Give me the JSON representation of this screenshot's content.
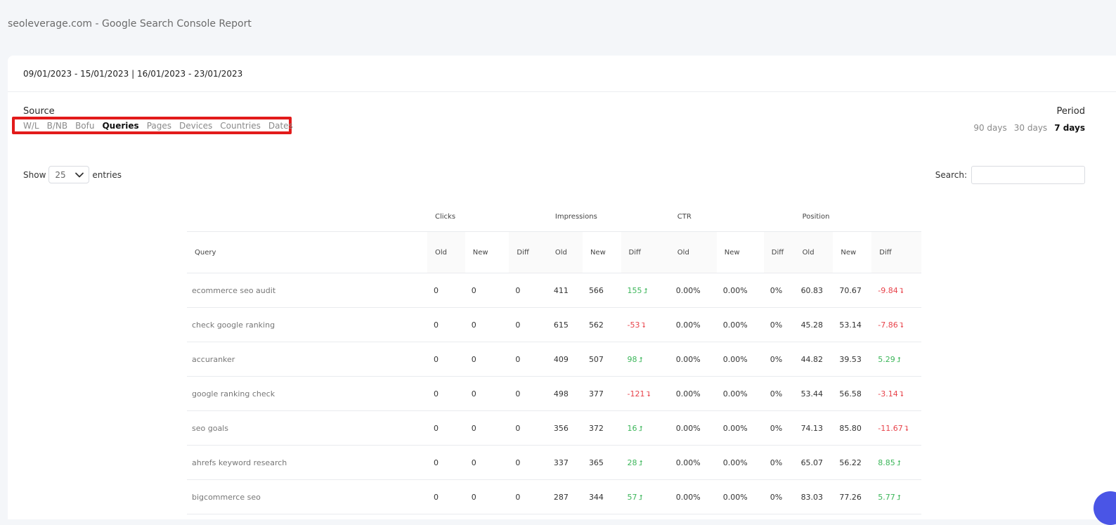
{
  "page": {
    "title": "seoleverage.com - Google Search Console Report"
  },
  "report": {
    "date_range": "09/01/2023 - 15/01/2023 | 16/01/2023 - 23/01/2023",
    "source_label": "Source",
    "source_tabs": [
      {
        "label": "W/L",
        "active": false
      },
      {
        "label": "B/NB",
        "active": false
      },
      {
        "label": "Bofu",
        "active": false
      },
      {
        "label": "Queries",
        "active": true
      },
      {
        "label": "Pages",
        "active": false
      },
      {
        "label": "Devices",
        "active": false
      },
      {
        "label": "Countries",
        "active": false
      },
      {
        "label": "Dates",
        "active": false
      }
    ],
    "period_label": "Period",
    "period_tabs": [
      {
        "label": "90 days",
        "active": false
      },
      {
        "label": "30 days",
        "active": false
      },
      {
        "label": "7 days",
        "active": true
      }
    ]
  },
  "controls": {
    "show_label": "Show",
    "entries_value": "25",
    "entries_label": "entries",
    "search_label": "Search:",
    "search_value": ""
  },
  "table": {
    "groups": [
      "Clicks",
      "Impressions",
      "CTR",
      "Position"
    ],
    "query_header": "Query",
    "sub_headers": [
      "Old",
      "New",
      "Diff"
    ],
    "rows": [
      {
        "query": "ecommerce seo audit",
        "clicks": [
          "0",
          "0",
          "0"
        ],
        "impressions": [
          "411",
          "566"
        ],
        "imp_diff": "155",
        "imp_dir": "up",
        "ctr": [
          "0.00%",
          "0.00%",
          "0%"
        ],
        "position": [
          "60.83",
          "70.67"
        ],
        "pos_diff": "-9.84",
        "pos_dir": "down"
      },
      {
        "query": "check google ranking",
        "clicks": [
          "0",
          "0",
          "0"
        ],
        "impressions": [
          "615",
          "562"
        ],
        "imp_diff": "-53",
        "imp_dir": "down",
        "ctr": [
          "0.00%",
          "0.00%",
          "0%"
        ],
        "position": [
          "45.28",
          "53.14"
        ],
        "pos_diff": "-7.86",
        "pos_dir": "down"
      },
      {
        "query": "accuranker",
        "clicks": [
          "0",
          "0",
          "0"
        ],
        "impressions": [
          "409",
          "507"
        ],
        "imp_diff": "98",
        "imp_dir": "up",
        "ctr": [
          "0.00%",
          "0.00%",
          "0%"
        ],
        "position": [
          "44.82",
          "39.53"
        ],
        "pos_diff": "5.29",
        "pos_dir": "up"
      },
      {
        "query": "google ranking check",
        "clicks": [
          "0",
          "0",
          "0"
        ],
        "impressions": [
          "498",
          "377"
        ],
        "imp_diff": "-121",
        "imp_dir": "down",
        "ctr": [
          "0.00%",
          "0.00%",
          "0%"
        ],
        "position": [
          "53.44",
          "56.58"
        ],
        "pos_diff": "-3.14",
        "pos_dir": "down"
      },
      {
        "query": "seo goals",
        "clicks": [
          "0",
          "0",
          "0"
        ],
        "impressions": [
          "356",
          "372"
        ],
        "imp_diff": "16",
        "imp_dir": "up",
        "ctr": [
          "0.00%",
          "0.00%",
          "0%"
        ],
        "position": [
          "74.13",
          "85.80"
        ],
        "pos_diff": "-11.67",
        "pos_dir": "down"
      },
      {
        "query": "ahrefs keyword research",
        "clicks": [
          "0",
          "0",
          "0"
        ],
        "impressions": [
          "337",
          "365"
        ],
        "imp_diff": "28",
        "imp_dir": "up",
        "ctr": [
          "0.00%",
          "0.00%",
          "0%"
        ],
        "position": [
          "65.07",
          "56.22"
        ],
        "pos_diff": "8.85",
        "pos_dir": "up"
      },
      {
        "query": "bigcommerce seo",
        "clicks": [
          "0",
          "0",
          "0"
        ],
        "impressions": [
          "287",
          "344"
        ],
        "imp_diff": "57",
        "imp_dir": "up",
        "ctr": [
          "0.00%",
          "0.00%",
          "0%"
        ],
        "position": [
          "83.03",
          "77.26"
        ],
        "pos_diff": "5.77",
        "pos_dir": "up"
      }
    ]
  },
  "icons": {
    "dropdown": "chevron-down-icon",
    "up": "arrow-up-icon",
    "down": "arrow-down-icon",
    "up_glyph": "⮥",
    "down_glyph": "⮧"
  },
  "colors": {
    "positive": "#3cb65a",
    "negative": "#e8424a",
    "highlight": "#e21b1b"
  }
}
